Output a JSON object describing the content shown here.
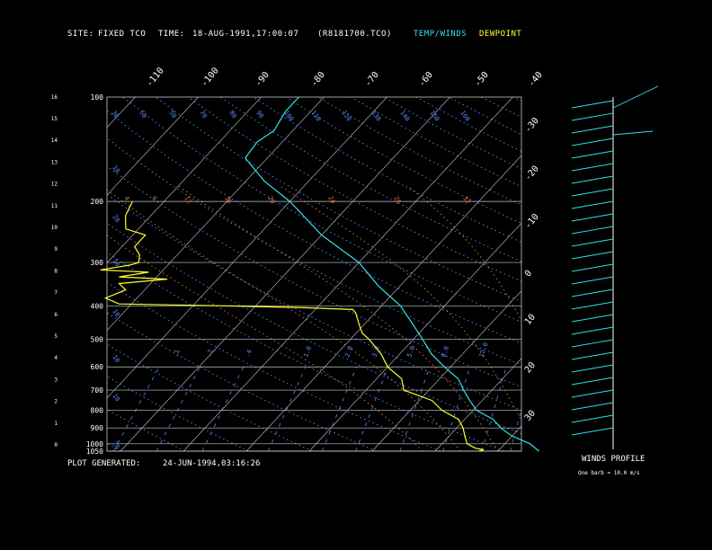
{
  "header": {
    "site_label": "SITE:",
    "site_value": "FIXED TCO",
    "time_label": "TIME:",
    "time_value": "18-AUG-1991,17:00:07",
    "file_id": "(R8181700.TCO)",
    "temp_legend": "TEMP/WINDS",
    "dew_legend": "DEWPOINT"
  },
  "footer": {
    "generated_label": "PLOT GENERATED:",
    "generated_value": "24-JUN-1994,03:16:26",
    "winds_title": "WINDS PROFILE",
    "barb_note": "One barb = 10.0 m/s"
  },
  "colors": {
    "temp": "#33e0e8",
    "dew": "#ffff33",
    "isobar": "#c8c8c8",
    "isotherm": "#c8c8c8",
    "dry_adiabat": "#5a8cff",
    "moist_adiabat": "#e07a40",
    "mixing_ratio": "#5a8cff",
    "frame": "#c8c8c8"
  },
  "chart_data": {
    "type": "line",
    "chart_kind": "skew-T log-P",
    "pressure_labels": [
      "100",
      "200",
      "300",
      "400",
      "500",
      "600",
      "700",
      "800",
      "900",
      "1000",
      "1050"
    ],
    "height_labels": [
      "0",
      "1",
      "2",
      "3",
      "4",
      "5",
      "6",
      "7",
      "8",
      "9",
      "10",
      "11",
      "12",
      "13",
      "14",
      "15",
      "16"
    ],
    "isotherm_labels": [
      "-110",
      "-100",
      "-90",
      "-80",
      "-70",
      "-60",
      "-50",
      "-40",
      "-30",
      "-20",
      "-10",
      "0",
      "10",
      "20",
      "30"
    ],
    "theta_labels": [
      "30",
      "50",
      "50",
      "70",
      "80",
      "90",
      "100",
      "110",
      "120",
      "130",
      "140",
      "150",
      "160"
    ],
    "theta_e_labels": [
      "4",
      "6",
      "12",
      "16",
      "20",
      "24",
      "28",
      "32"
    ],
    "mixing_ratio_labels": [
      ".1",
      ".2",
      ".4",
      "1.0",
      "2.0",
      "3.0",
      "5.0",
      "8.0",
      "12.0"
    ],
    "dry_adiabat_left_labels": [
      "10",
      "20",
      "10",
      "10",
      "10",
      "10",
      "20",
      "20"
    ],
    "temperature": {
      "name": "TEMP/WINDS",
      "points": [
        [
          1050,
          26.5
        ],
        [
          1000,
          24
        ],
        [
          950,
          20
        ],
        [
          900,
          17
        ],
        [
          850,
          14.5
        ],
        [
          800,
          10.5
        ],
        [
          750,
          8
        ],
        [
          700,
          5.5
        ],
        [
          650,
          3
        ],
        [
          600,
          -1
        ],
        [
          550,
          -5
        ],
        [
          500,
          -8.5
        ],
        [
          450,
          -12.5
        ],
        [
          400,
          -17
        ],
        [
          350,
          -23.5
        ],
        [
          300,
          -30
        ],
        [
          250,
          -40
        ],
        [
          200,
          -50
        ],
        [
          175,
          -57
        ],
        [
          150,
          -63.5
        ],
        [
          135,
          -64
        ],
        [
          125,
          -63
        ],
        [
          110,
          -64
        ],
        [
          100,
          -64
        ]
      ]
    },
    "dewpoint": {
      "name": "DEWPOINT",
      "points": [
        [
          1050,
          17
        ],
        [
          1040,
          17.5
        ],
        [
          1030,
          16
        ],
        [
          1000,
          14
        ],
        [
          950,
          12.5
        ],
        [
          900,
          11
        ],
        [
          850,
          9
        ],
        [
          800,
          5
        ],
        [
          750,
          2
        ],
        [
          700,
          -4
        ],
        [
          650,
          -6
        ],
        [
          600,
          -10
        ],
        [
          550,
          -13
        ],
        [
          500,
          -17
        ],
        [
          480,
          -19
        ],
        [
          450,
          -21
        ],
        [
          420,
          -23
        ],
        [
          410,
          -24
        ],
        [
          405,
          -32
        ],
        [
          400,
          -45
        ],
        [
          395,
          -62
        ],
        [
          380,
          -65
        ],
        [
          360,
          -63
        ],
        [
          345,
          -65
        ],
        [
          335,
          -58
        ],
        [
          330,
          -66
        ],
        [
          320,
          -62
        ],
        [
          315,
          -70
        ],
        [
          305,
          -66
        ],
        [
          300,
          -65
        ],
        [
          285,
          -66
        ],
        [
          270,
          -68
        ],
        [
          250,
          -68
        ],
        [
          240,
          -72
        ],
        [
          230,
          -73
        ],
        [
          220,
          -74
        ],
        [
          200,
          -75
        ]
      ]
    },
    "winds": {
      "title": "WINDS PROFILE",
      "units": "m/s",
      "note": "One barb = 10.0 m/s"
    }
  }
}
